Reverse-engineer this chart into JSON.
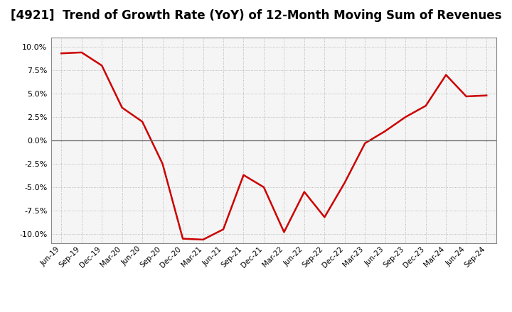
{
  "title": "[4921]  Trend of Growth Rate (YoY) of 12-Month Moving Sum of Revenues",
  "title_fontsize": 12,
  "line_color": "#cc0000",
  "background_color": "#ffffff",
  "plot_bg_color": "#f5f5f5",
  "grid_color": "#aaaaaa",
  "ylim": [
    -11.0,
    11.0
  ],
  "yticks": [
    10.0,
    7.5,
    5.0,
    2.5,
    0.0,
    -2.5,
    -5.0,
    -7.5,
    -10.0
  ],
  "x_labels": [
    "Jun-19",
    "Sep-19",
    "Dec-19",
    "Mar-20",
    "Jun-20",
    "Sep-20",
    "Dec-20",
    "Mar-21",
    "Jun-21",
    "Sep-21",
    "Dec-21",
    "Mar-22",
    "Jun-22",
    "Sep-22",
    "Dec-22",
    "Mar-23",
    "Jun-23",
    "Sep-23",
    "Dec-23",
    "Mar-24",
    "Jun-24",
    "Sep-24"
  ],
  "y_values": [
    9.3,
    9.4,
    8.0,
    3.5,
    2.0,
    -2.5,
    -10.5,
    -10.6,
    -9.5,
    -3.7,
    -5.0,
    -9.8,
    -5.5,
    -8.2,
    -4.5,
    -0.3,
    1.0,
    2.5,
    3.7,
    7.0,
    4.7,
    4.8
  ]
}
